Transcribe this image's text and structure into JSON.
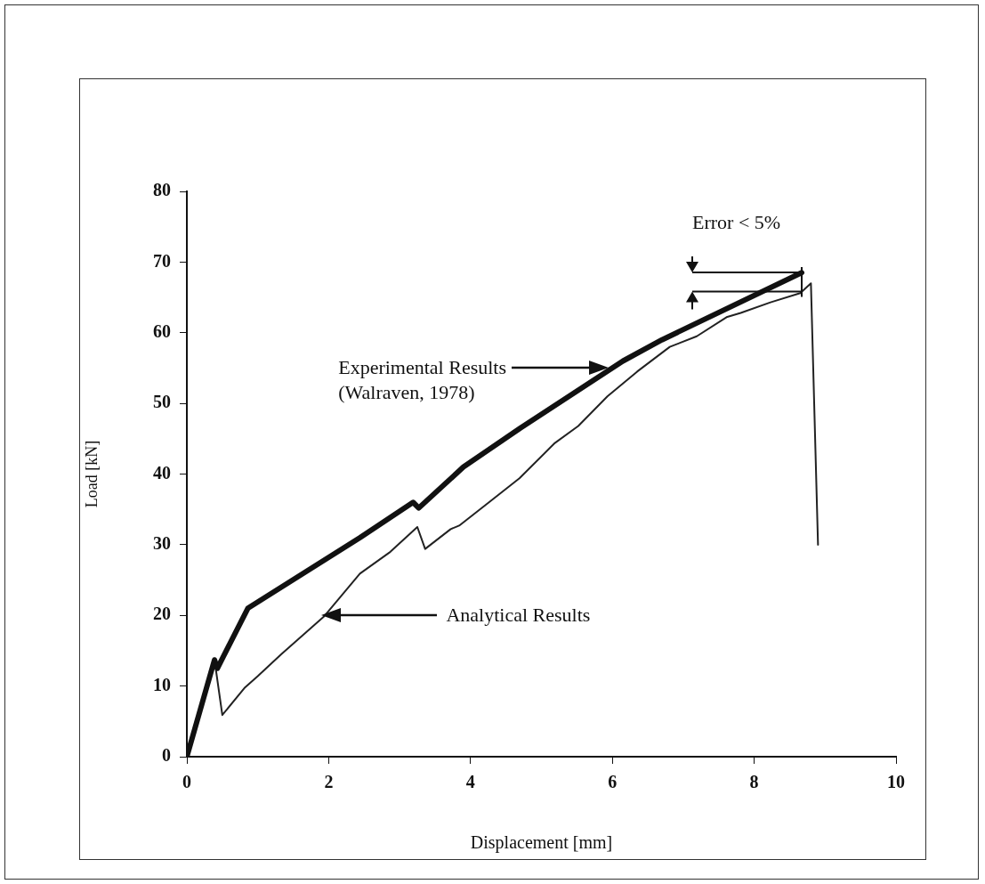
{
  "chart_data": {
    "type": "line",
    "xlabel": "Displacement [mm]",
    "ylabel": "Load [kN]",
    "xlim": [
      0,
      10
    ],
    "xticks": [
      0,
      2,
      4,
      6,
      8,
      10
    ],
    "ylim": [
      0,
      80
    ],
    "yticks": [
      0,
      10,
      20,
      30,
      40,
      50,
      60,
      70,
      80
    ],
    "grid": false,
    "legend": false,
    "marker": "none",
    "line_style": "solid",
    "series": [
      {
        "color": "#111111",
        "x": [
          0,
          0.39,
          0.43,
          0.86,
          2.44,
          3.19,
          3.27,
          3.9,
          4.7,
          6.15,
          6.7,
          8.67
        ],
        "values": [
          0,
          13.7,
          12.5,
          21,
          31,
          36,
          35.2,
          41,
          46.5,
          56,
          59,
          68.5
        ]
      },
      {
        "color": "#222222",
        "x": [
          0,
          0.39,
          0.5,
          0.82,
          1.0,
          1.33,
          1.93,
          2.44,
          2.87,
          3.25,
          3.36,
          3.72,
          3.84,
          4.26,
          4.69,
          5.19,
          5.52,
          5.93,
          6.35,
          6.81,
          7.19,
          7.61,
          7.81,
          8.23,
          8.65,
          8.8,
          8.9
        ],
        "values": [
          0,
          13.7,
          5.9,
          9.8,
          11.4,
          14.5,
          19.8,
          25.9,
          29,
          32.5,
          29.4,
          32.2,
          32.7,
          36,
          39.4,
          44.4,
          46.8,
          51,
          54.5,
          58,
          59.5,
          62.2,
          62.8,
          64.3,
          65.6,
          67,
          30
        ]
      }
    ],
    "annotations": [
      "Experimental Results\n(Walraven, 1978)",
      "Analytical Results",
      "Error < 5%"
    ]
  }
}
